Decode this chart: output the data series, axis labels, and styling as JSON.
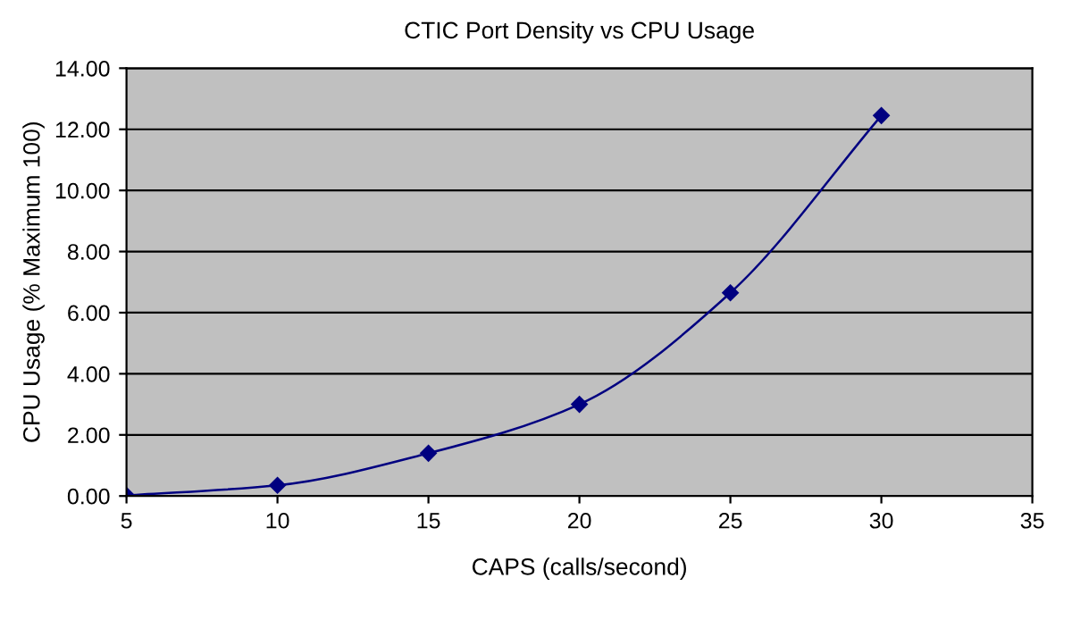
{
  "chart_data": {
    "type": "line",
    "title": "CTIC Port Density vs CPU Usage",
    "xlabel": "CAPS (calls/second)",
    "ylabel": "CPU Usage (% Maximum 100)",
    "x": [
      5,
      10,
      15,
      20,
      25,
      30
    ],
    "series": [
      {
        "color": "#000080",
        "values": [
          0.02,
          0.35,
          1.4,
          3.0,
          6.65,
          12.45
        ]
      }
    ],
    "xlim": [
      5,
      35
    ],
    "xticks": [
      5,
      10,
      15,
      20,
      25,
      30,
      35
    ],
    "ylim": [
      0,
      14
    ],
    "yticks": [
      {
        "value": 0,
        "label": "0.00"
      },
      {
        "value": 2,
        "label": "2.00"
      },
      {
        "value": 4,
        "label": "4.00"
      },
      {
        "value": 6,
        "label": "6.00"
      },
      {
        "value": 8,
        "label": "8.00"
      },
      {
        "value": 10,
        "label": "10.00"
      },
      {
        "value": 12,
        "label": "12.00"
      },
      {
        "value": 14,
        "label": "14.00"
      }
    ],
    "grid": "y",
    "marker": "diamond",
    "line_style": "solid",
    "legend": false
  }
}
